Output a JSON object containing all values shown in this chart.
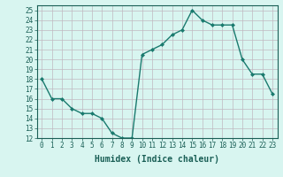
{
  "x": [
    0,
    1,
    2,
    3,
    4,
    5,
    6,
    7,
    8,
    9,
    10,
    11,
    12,
    13,
    14,
    15,
    16,
    17,
    18,
    19,
    20,
    21,
    22,
    23
  ],
  "y": [
    18,
    16,
    16,
    15,
    14.5,
    14.5,
    14,
    12.5,
    12,
    12,
    20.5,
    21,
    21.5,
    22.5,
    23,
    25,
    24,
    23.5,
    23.5,
    23.5,
    20,
    18.5,
    18.5,
    16.5
  ],
  "line_color": "#1a7a6e",
  "marker": "D",
  "marker_size": 2,
  "bg_color": "#d8f5f0",
  "grid_color": "#c0b8c0",
  "xlabel": "Humidex (Indice chaleur)",
  "xlim": [
    -0.5,
    23.5
  ],
  "ylim": [
    12,
    25.5
  ],
  "yticks": [
    12,
    13,
    14,
    15,
    16,
    17,
    18,
    19,
    20,
    21,
    22,
    23,
    24,
    25
  ],
  "xticks": [
    0,
    1,
    2,
    3,
    4,
    5,
    6,
    7,
    8,
    9,
    10,
    11,
    12,
    13,
    14,
    15,
    16,
    17,
    18,
    19,
    20,
    21,
    22,
    23
  ],
  "xtick_labels": [
    "0",
    "1",
    "2",
    "3",
    "4",
    "5",
    "6",
    "7",
    "8",
    "9",
    "10",
    "11",
    "12",
    "13",
    "14",
    "15",
    "16",
    "17",
    "18",
    "19",
    "20",
    "21",
    "22",
    "23"
  ],
  "tick_color": "#1a5f56",
  "tick_fontsize": 5.5,
  "xlabel_fontsize": 7,
  "xlabel_fontweight": "bold",
  "xlabel_color": "#1a5f56"
}
